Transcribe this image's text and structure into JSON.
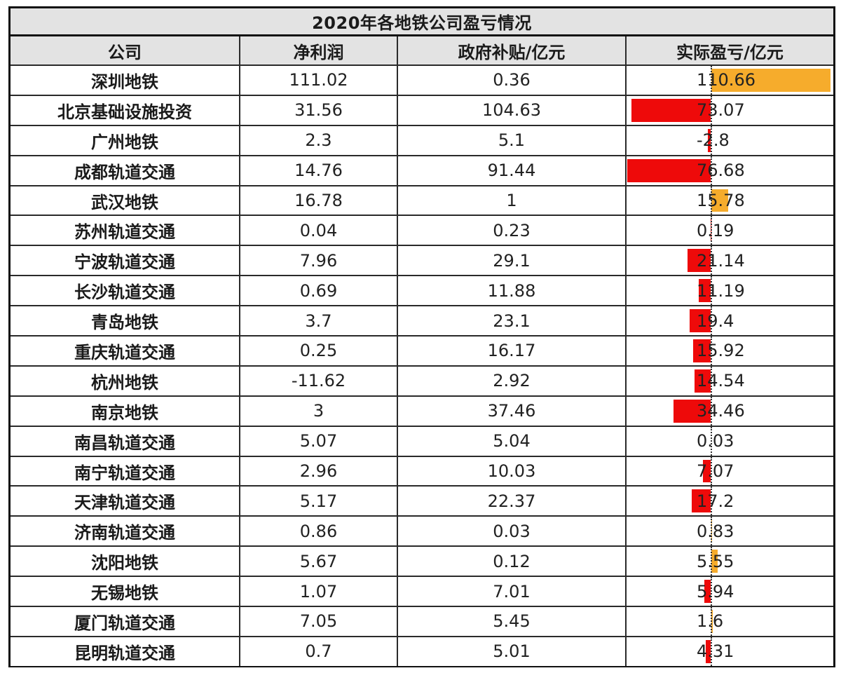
{
  "table": {
    "title": "2020年各地铁公司盈亏情况",
    "headers": [
      "公司",
      "净利润",
      "政府补贴/亿元",
      "实际盈亏/亿元"
    ],
    "rows": [
      {
        "company": "深圳地铁",
        "net_profit": "111.02",
        "subsidy": "0.36",
        "actual": "110.66",
        "actual_value": 110.66
      },
      {
        "company": "北京基础设施投资",
        "net_profit": "31.56",
        "subsidy": "104.63",
        "actual": "73.07",
        "actual_value": -73.07
      },
      {
        "company": "广州地铁",
        "net_profit": "2.3",
        "subsidy": "5.1",
        "actual": "-2.8",
        "actual_value": -2.8
      },
      {
        "company": "成都轨道交通",
        "net_profit": "14.76",
        "subsidy": "91.44",
        "actual": "76.68",
        "actual_value": -76.68
      },
      {
        "company": "武汉地铁",
        "net_profit": "16.78",
        "subsidy": "1",
        "actual": "15.78",
        "actual_value": 15.78
      },
      {
        "company": "苏州轨道交通",
        "net_profit": "0.04",
        "subsidy": "0.23",
        "actual": "0.19",
        "actual_value": -0.19
      },
      {
        "company": "宁波轨道交通",
        "net_profit": "7.96",
        "subsidy": "29.1",
        "actual": "21.14",
        "actual_value": -21.14
      },
      {
        "company": "长沙轨道交通",
        "net_profit": "0.69",
        "subsidy": "11.88",
        "actual": "11.19",
        "actual_value": -11.19
      },
      {
        "company": "青岛地铁",
        "net_profit": "3.7",
        "subsidy": "23.1",
        "actual": "19.4",
        "actual_value": -19.4
      },
      {
        "company": "重庆轨道交通",
        "net_profit": "0.25",
        "subsidy": "16.17",
        "actual": "15.92",
        "actual_value": -15.92
      },
      {
        "company": "杭州地铁",
        "net_profit": "-11.62",
        "subsidy": "2.92",
        "actual": "14.54",
        "actual_value": -14.54
      },
      {
        "company": "南京地铁",
        "net_profit": "3",
        "subsidy": "37.46",
        "actual": "34.46",
        "actual_value": -34.46
      },
      {
        "company": "南昌轨道交通",
        "net_profit": "5.07",
        "subsidy": "5.04",
        "actual": "0.03",
        "actual_value": 0.03
      },
      {
        "company": "南宁轨道交通",
        "net_profit": "2.96",
        "subsidy": "10.03",
        "actual": "7.07",
        "actual_value": -7.07
      },
      {
        "company": "天津轨道交通",
        "net_profit": "5.17",
        "subsidy": "22.37",
        "actual": "17.2",
        "actual_value": -17.2
      },
      {
        "company": "济南轨道交通",
        "net_profit": "0.86",
        "subsidy": "0.03",
        "actual": "0.83",
        "actual_value": 0.83
      },
      {
        "company": "沈阳地铁",
        "net_profit": "5.67",
        "subsidy": "0.12",
        "actual": "5.55",
        "actual_value": 5.55
      },
      {
        "company": "无锡地铁",
        "net_profit": "1.07",
        "subsidy": "7.01",
        "actual": "5.94",
        "actual_value": -5.94
      },
      {
        "company": "厦门轨道交通",
        "net_profit": "7.05",
        "subsidy": "5.45",
        "actual": "1.6",
        "actual_value": 1.6
      },
      {
        "company": "昆明轨道交通",
        "net_profit": "0.7",
        "subsidy": "5.01",
        "actual": "4.31",
        "actual_value": -4.31
      }
    ]
  },
  "colors": {
    "header_bg": "#e3e3e3",
    "positive_bar": "#f6ac2c",
    "negative_bar": "#ee0a0a",
    "border": "#111111"
  }
}
